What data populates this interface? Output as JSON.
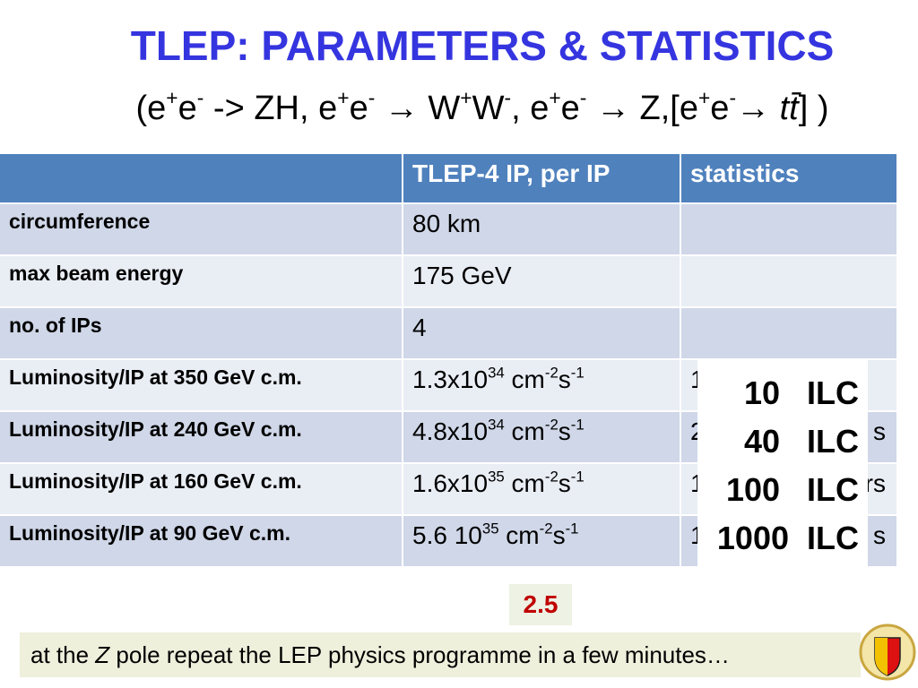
{
  "header": {
    "title": "TLEP: PARAMETERS & STATISTICS",
    "subtitle": [
      {
        "text": "(e"
      },
      {
        "sup": "+"
      },
      {
        "text": "e"
      },
      {
        "sup": "-"
      },
      {
        "text": " -> ZH, e"
      },
      {
        "sup": "+"
      },
      {
        "text": "e"
      },
      {
        "sup": "-"
      },
      {
        "text": " → W"
      },
      {
        "sup": "+"
      },
      {
        "text": "W"
      },
      {
        "sup": "-"
      },
      {
        "text": ", e"
      },
      {
        "sup": "+"
      },
      {
        "text": "e"
      },
      {
        "sup": "-"
      },
      {
        "text": " → Z,[e"
      },
      {
        "sup": "+"
      },
      {
        "text": "e"
      },
      {
        "sup": "-"
      },
      {
        "text": "→ "
      },
      {
        "italic": "tt̄"
      },
      {
        "text": "] )"
      }
    ]
  },
  "table": {
    "columns": [
      "TLEP-4 IP,  per IP",
      "statistics"
    ],
    "rows": [
      {
        "label": "circumference",
        "value": "80 km"
      },
      {
        "label": "max beam energy",
        "value": "175 GeV"
      },
      {
        "label": "no. of IPs",
        "value": "4"
      },
      {
        "label": "Luminosity/IP at 350 GeV c.m.",
        "value": [
          {
            "text": "1.3x10"
          },
          {
            "sup": "34"
          },
          {
            "text": " cm"
          },
          {
            "sup": "-2"
          },
          {
            "text": "s"
          },
          {
            "sup": "-1"
          }
        ],
        "statistics": [
          "1"
        ]
      },
      {
        "label": "Luminosity/IP at 240 GeV c.m.",
        "value": [
          {
            "text": "4.8x10"
          },
          {
            "sup": "34"
          },
          {
            "text": " cm"
          },
          {
            "sup": "-2"
          },
          {
            "text": "s"
          },
          {
            "sup": "-1"
          }
        ],
        "statistics": [
          "2",
          "s"
        ]
      },
      {
        "label": "Luminosity/IP at 160 GeV c.m.",
        "value": [
          {
            "text": "1.6x10"
          },
          {
            "sup": "35"
          },
          {
            "text": " cm"
          },
          {
            "sup": "-2"
          },
          {
            "text": "s"
          },
          {
            "sup": "-1"
          }
        ],
        "statistics": [
          "1",
          "rs"
        ]
      },
      {
        "label": "Luminosity/IP at 90 GeV c.m.",
        "value": [
          {
            "text": "5.6 10"
          },
          {
            "sup": "35"
          },
          {
            "text": " cm"
          },
          {
            "sup": "-2"
          },
          {
            "text": "s"
          },
          {
            "sup": "-1"
          }
        ],
        "statistics": [
          "1",
          "s"
        ]
      }
    ]
  },
  "overlay": {
    "lines": [
      "10   ILC",
      "40   ILC",
      "100   ILC",
      "1000  ILC"
    ]
  },
  "badge": "2.5",
  "footer": [
    {
      "text": "at the  "
    },
    {
      "italic": "Z"
    },
    {
      "text": " pole repeat the LEP physics programme in a few minutes…"
    }
  ]
}
